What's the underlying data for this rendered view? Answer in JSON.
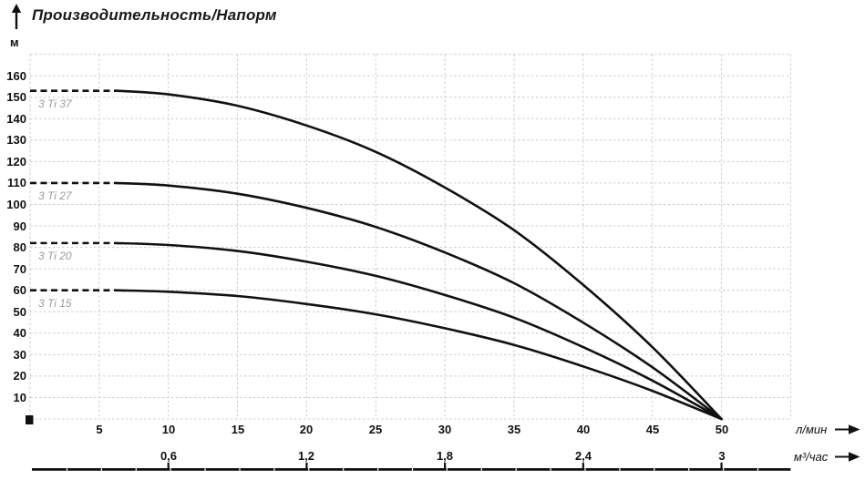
{
  "chart": {
    "title": "Производительность/Напорм",
    "y_unit": "м",
    "x_unit_primary": "л/мин",
    "x_unit_secondary": "м³/час"
  },
  "chart_data": {
    "type": "line",
    "title": "Производительность/Напорм",
    "ylabel": "м",
    "xlabel_primary": "л/мин",
    "xlabel_secondary": "м³/час",
    "xlim": [
      0,
      55
    ],
    "ylim": [
      0,
      170
    ],
    "grid": "dashed",
    "legend_position": "inline-left",
    "y_ticks": [
      10,
      20,
      30,
      40,
      50,
      60,
      70,
      80,
      90,
      100,
      110,
      120,
      130,
      140,
      150,
      160
    ],
    "x_ticks_lmin": [
      5,
      10,
      15,
      20,
      25,
      30,
      35,
      40,
      45,
      50
    ],
    "x_ticks_m3h": [
      {
        "q": 10,
        "label": "0,6"
      },
      {
        "q": 20,
        "label": "1,2"
      },
      {
        "q": 30,
        "label": "1,8"
      },
      {
        "q": 40,
        "label": "2,4"
      },
      {
        "q": 50,
        "label": "3"
      }
    ],
    "series": [
      {
        "name": "3 Ti 37",
        "start_head_m": 153,
        "dashed_from_q": 0,
        "dashed_to_q": 6.2,
        "points": [
          [
            6.2,
            153
          ],
          [
            10,
            151.3
          ],
          [
            15,
            146.0
          ],
          [
            20,
            136.8
          ],
          [
            25,
            124.5
          ],
          [
            30,
            107.9
          ],
          [
            35,
            88.0
          ],
          [
            40,
            62.5
          ],
          [
            45,
            33.5
          ],
          [
            50,
            0
          ]
        ]
      },
      {
        "name": "3 Ti 27",
        "start_head_m": 110,
        "dashed_from_q": 0,
        "dashed_to_q": 6.2,
        "points": [
          [
            6.2,
            110
          ],
          [
            10,
            108.8
          ],
          [
            15,
            105.0
          ],
          [
            20,
            98.4
          ],
          [
            25,
            89.5
          ],
          [
            30,
            77.6
          ],
          [
            35,
            63.3
          ],
          [
            40,
            44.9
          ],
          [
            45,
            24.1
          ],
          [
            50,
            0
          ]
        ]
      },
      {
        "name": "3 Ti 20",
        "start_head_m": 82,
        "dashed_from_q": 0,
        "dashed_to_q": 6.2,
        "points": [
          [
            6.2,
            82
          ],
          [
            10,
            81.1
          ],
          [
            15,
            78.3
          ],
          [
            20,
            73.3
          ],
          [
            25,
            66.7
          ],
          [
            30,
            57.8
          ],
          [
            35,
            47.2
          ],
          [
            40,
            33.5
          ],
          [
            45,
            17.9
          ],
          [
            50,
            0
          ]
        ]
      },
      {
        "name": "3 Ti 15",
        "start_head_m": 60,
        "dashed_from_q": 0,
        "dashed_to_q": 6.2,
        "points": [
          [
            6.2,
            60
          ],
          [
            10,
            59.3
          ],
          [
            15,
            57.3
          ],
          [
            20,
            53.6
          ],
          [
            25,
            48.8
          ],
          [
            30,
            42.3
          ],
          [
            35,
            34.5
          ],
          [
            40,
            24.5
          ],
          [
            45,
            13.1
          ],
          [
            50,
            0
          ]
        ]
      }
    ],
    "colors": {
      "curve": "#111111",
      "grid": "#cccccc",
      "series_label": "#9b9b9b",
      "text": "#111111"
    }
  }
}
